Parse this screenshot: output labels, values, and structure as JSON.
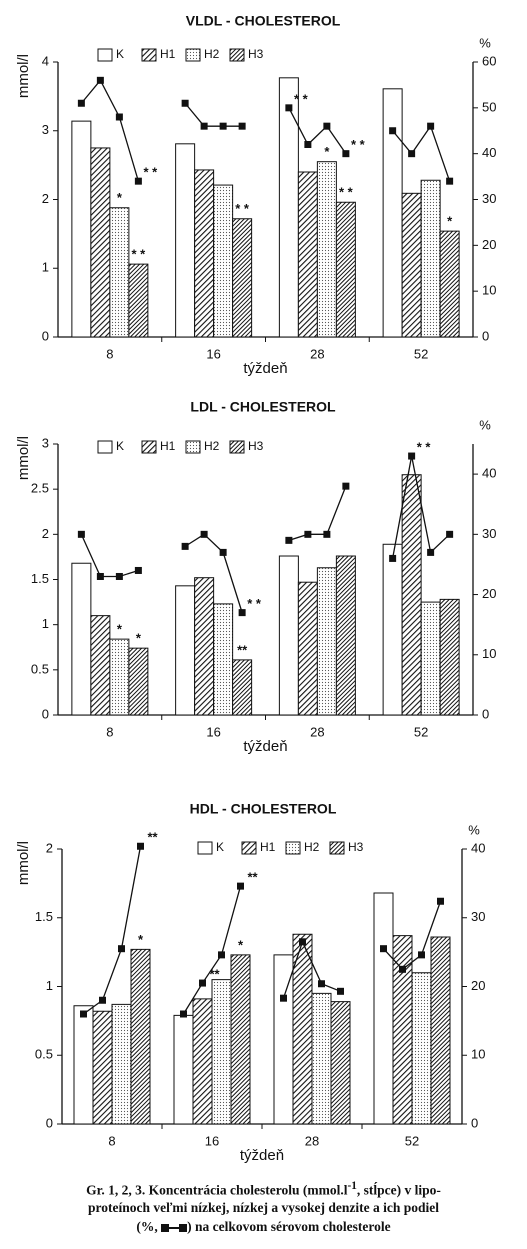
{
  "chart_data": [
    {
      "type": "bar",
      "title": "VLDL - CHOLESTEROL",
      "ylabel": "mmol/l",
      "y2label": "%",
      "xlabel": "týždeň",
      "categories": [
        "8",
        "16",
        "28",
        "52"
      ],
      "ylim": [
        0,
        4
      ],
      "yticks": [
        0,
        1,
        2,
        3,
        4
      ],
      "y2lim": [
        0,
        60
      ],
      "y2ticks": [
        0,
        10,
        20,
        30,
        40,
        50,
        60
      ],
      "series": [
        {
          "name": "K",
          "pattern": "none",
          "values": [
            3.14,
            2.81,
            3.77,
            3.61
          ]
        },
        {
          "name": "H1",
          "pattern": "hatch",
          "values": [
            2.75,
            2.43,
            2.4,
            2.09
          ]
        },
        {
          "name": "H2",
          "pattern": "dots",
          "values": [
            1.88,
            2.21,
            2.55,
            2.28
          ]
        },
        {
          "name": "H3",
          "pattern": "dense",
          "values": [
            1.06,
            1.72,
            1.96,
            1.54
          ]
        }
      ],
      "percent": {
        "axis": "y2",
        "color": "#111",
        "values": [
          [
            51,
            56,
            48,
            34
          ],
          [
            51,
            46,
            46,
            46
          ],
          [
            50,
            42,
            46,
            40
          ],
          [
            45,
            40,
            46,
            34
          ]
        ]
      },
      "annotations": [
        {
          "text": "* *",
          "category": 0,
          "series": 3,
          "on": "line"
        },
        {
          "text": "*",
          "category": 0,
          "series": 2,
          "on": "bar"
        },
        {
          "text": "* *",
          "category": 0,
          "series": 3,
          "on": "bar"
        },
        {
          "text": "* *",
          "category": 1,
          "series": 3,
          "on": "bar"
        },
        {
          "text": "* *",
          "category": 2,
          "series": 0,
          "on": "line"
        },
        {
          "text": "*",
          "category": 2,
          "series": 2,
          "on": "bar"
        },
        {
          "text": "* *",
          "category": 2,
          "series": 3,
          "on": "line"
        },
        {
          "text": "* *",
          "category": 2,
          "series": 3,
          "on": "bar"
        },
        {
          "text": "*",
          "category": 3,
          "series": 3,
          "on": "bar"
        }
      ]
    },
    {
      "type": "bar",
      "title": "LDL - CHOLESTEROL",
      "ylabel": "mmol/l",
      "y2label": "%",
      "xlabel": "týždeň",
      "categories": [
        "8",
        "16",
        "28",
        "52"
      ],
      "ylim": [
        0,
        3
      ],
      "yticks": [
        0,
        0.5,
        1,
        1.5,
        2,
        2.5,
        3
      ],
      "y2lim": [
        0,
        45
      ],
      "y2ticks": [
        0,
        10,
        20,
        30,
        40
      ],
      "series": [
        {
          "name": "K",
          "pattern": "none",
          "values": [
            1.68,
            1.43,
            1.76,
            1.89
          ]
        },
        {
          "name": "H1",
          "pattern": "hatch",
          "values": [
            1.1,
            1.52,
            1.47,
            2.66
          ]
        },
        {
          "name": "H2",
          "pattern": "dots",
          "values": [
            0.84,
            1.23,
            1.63,
            1.25
          ]
        },
        {
          "name": "H3",
          "pattern": "dense",
          "values": [
            0.74,
            0.61,
            1.76,
            1.28
          ]
        }
      ],
      "percent": {
        "axis": "y2",
        "color": "#111",
        "values": [
          [
            30,
            23,
            23,
            24
          ],
          [
            28,
            30,
            27,
            17
          ],
          [
            29,
            30,
            30,
            38
          ],
          [
            26,
            43,
            27,
            30
          ]
        ]
      },
      "annotations": [
        {
          "text": "*",
          "category": 0,
          "series": 2,
          "on": "bar"
        },
        {
          "text": "*",
          "category": 0,
          "series": 3,
          "on": "bar"
        },
        {
          "text": "* *",
          "category": 1,
          "series": 3,
          "on": "line"
        },
        {
          "text": "**",
          "category": 1,
          "series": 3,
          "on": "bar"
        },
        {
          "text": "* *",
          "category": 3,
          "series": 1,
          "on": "line"
        }
      ]
    },
    {
      "type": "bar",
      "title": "HDL - CHOLESTEROL",
      "ylabel": "mmol/l",
      "y2label": "%",
      "xlabel": "týždeň",
      "categories": [
        "8",
        "16",
        "28",
        "52"
      ],
      "ylim": [
        0,
        2
      ],
      "yticks": [
        0,
        0.5,
        1,
        1.5,
        2
      ],
      "y2lim": [
        0,
        40
      ],
      "y2ticks": [
        0,
        10,
        20,
        30,
        40
      ],
      "series": [
        {
          "name": "K",
          "pattern": "none",
          "values": [
            0.86,
            0.79,
            1.23,
            1.68
          ]
        },
        {
          "name": "H1",
          "pattern": "hatch",
          "values": [
            0.82,
            0.91,
            1.38,
            1.37
          ]
        },
        {
          "name": "H2",
          "pattern": "dots",
          "values": [
            0.87,
            1.05,
            0.95,
            1.1
          ]
        },
        {
          "name": "H3",
          "pattern": "dense",
          "values": [
            1.27,
            1.23,
            0.89,
            1.36
          ]
        }
      ],
      "percent": {
        "axis": "y2",
        "color": "#111",
        "values": [
          [
            16,
            18,
            25.5,
            40.4
          ],
          [
            16,
            20.5,
            24.6,
            34.6
          ],
          [
            18.3,
            26.5,
            20.4,
            19.3
          ],
          [
            25.5,
            22.5,
            24.6,
            32.4
          ]
        ]
      },
      "annotations": [
        {
          "text": "**",
          "category": 0,
          "series": 3,
          "on": "line"
        },
        {
          "text": "*",
          "category": 0,
          "series": 3,
          "on": "bar"
        },
        {
          "text": "**",
          "category": 1,
          "series": 1,
          "on": "line"
        },
        {
          "text": "**",
          "category": 1,
          "series": 3,
          "on": "line"
        },
        {
          "text": "*",
          "category": 1,
          "series": 3,
          "on": "bar"
        }
      ]
    }
  ],
  "caption": {
    "part1": "Gr. 1, 2, 3. Koncentrácia cholesterolu (mmol.l",
    "sup": "-1",
    "part2": ", stĺpce) v lipo-",
    "line2": "proteínoch veľmi nízkej, nízkej a vysokej denzite a ich podiel",
    "line3a": "(%, ",
    "line3b": ") na celkovom sérovom cholesterole"
  }
}
